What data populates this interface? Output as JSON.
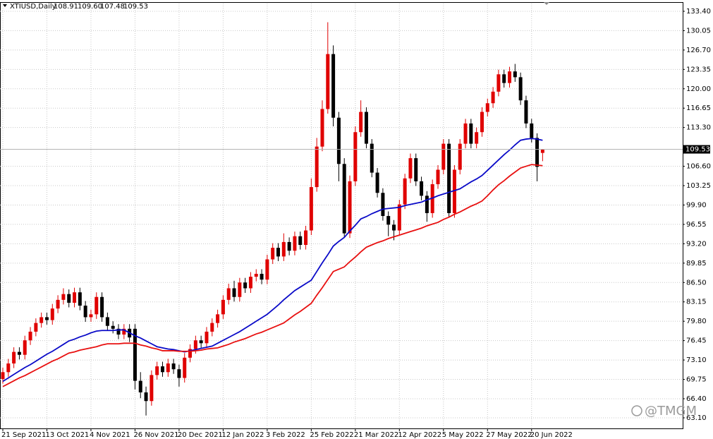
{
  "chart_data": {
    "type": "candlestick",
    "title": "XTIUSD,Daily",
    "header_values": [
      "108.91",
      "109.60",
      "107.48",
      "109.53"
    ],
    "watermark": "@TMGM",
    "categories": [
      "21 Sep 2021",
      null,
      null,
      null,
      null,
      null,
      null,
      null,
      "13 Oct 2021",
      null,
      null,
      null,
      null,
      null,
      null,
      null,
      "4 Nov 2021",
      null,
      null,
      null,
      null,
      null,
      null,
      null,
      "26 Nov 2021",
      null,
      null,
      null,
      null,
      null,
      null,
      null,
      "20 Dec 2021",
      null,
      null,
      null,
      null,
      null,
      null,
      null,
      "12 Jan 2022",
      null,
      null,
      null,
      null,
      null,
      null,
      null,
      "3 Feb 2022",
      null,
      null,
      null,
      null,
      null,
      null,
      null,
      "25 Feb 2022",
      null,
      null,
      null,
      null,
      null,
      null,
      null,
      "21 Mar 2022",
      null,
      null,
      null,
      null,
      null,
      null,
      null,
      "12 Apr 2022",
      null,
      null,
      null,
      null,
      null,
      null,
      null,
      "5 May 2022",
      null,
      null,
      null,
      null,
      null,
      null,
      null,
      "27 May 2022",
      null,
      null,
      null,
      null,
      null,
      null,
      null,
      "20 Jun 2022",
      null,
      null
    ],
    "open": [
      69.8,
      71.0,
      72.5,
      74.5,
      74.0,
      76.5,
      78.0,
      79.5,
      80.5,
      80.0,
      82.0,
      83.5,
      84.5,
      83.0,
      84.8,
      82.5,
      80.5,
      81.0,
      84.0,
      80.5,
      79.0,
      78.5,
      77.5,
      78.5,
      78.5,
      69.5,
      67.5,
      66.0,
      70.5,
      72.0,
      71.0,
      72.5,
      71.5,
      70.0,
      73.5,
      75.0,
      76.5,
      76.0,
      78.0,
      79.5,
      81.0,
      83.5,
      85.5,
      84.0,
      86.5,
      85.5,
      87.5,
      88.0,
      87.0,
      90.5,
      92.5,
      91.0,
      93.5,
      92.0,
      94.5,
      93.0,
      95.5,
      103.0,
      110.0,
      116.5,
      126.0,
      115.0,
      107.0,
      95.0,
      104.0,
      112.5,
      116.0,
      110.5,
      105.5,
      102.0,
      98.0,
      96.5,
      95.5,
      100.0,
      104.5,
      108.0,
      104.0,
      101.5,
      98.5,
      103.5,
      106.0,
      110.5,
      98.5,
      106.0,
      110.5,
      114.0,
      110.5,
      112.5,
      116.0,
      117.5,
      119.5,
      122.5,
      121.0,
      123.0,
      122.0,
      118.0,
      114.0,
      111.5,
      108.91
    ],
    "high": [
      71.8,
      73.3,
      75.3,
      75.3,
      77.3,
      78.8,
      80.3,
      81.3,
      81.3,
      82.8,
      84.3,
      85.5,
      85.3,
      85.6,
      85.6,
      83.3,
      81.8,
      84.8,
      84.8,
      81.3,
      79.8,
      79.3,
      79.3,
      79.3,
      79.3,
      71.0,
      68.5,
      71.3,
      72.8,
      72.8,
      73.3,
      73.3,
      72.3,
      74.3,
      75.8,
      77.3,
      77.3,
      78.8,
      80.3,
      81.8,
      84.3,
      86.3,
      86.8,
      87.3,
      87.3,
      88.3,
      88.8,
      88.8,
      91.3,
      93.3,
      93.3,
      95.0,
      94.3,
      95.3,
      95.3,
      96.3,
      104.5,
      111.5,
      118.0,
      131.5,
      127.5,
      116.0,
      108.0,
      105.0,
      113.5,
      118.0,
      116.8,
      111.3,
      106.3,
      102.8,
      98.8,
      97.3,
      100.8,
      105.3,
      108.8,
      108.8,
      104.8,
      102.3,
      104.3,
      106.8,
      111.3,
      111.3,
      106.8,
      111.3,
      114.8,
      114.8,
      113.3,
      116.8,
      118.3,
      120.3,
      123.3,
      123.3,
      123.8,
      124.3,
      122.8,
      118.8,
      114.8,
      112.3,
      109.6
    ],
    "low": [
      69.0,
      70.2,
      71.7,
      73.2,
      73.2,
      75.7,
      77.2,
      78.7,
      79.2,
      79.2,
      81.2,
      82.7,
      82.2,
      82.2,
      81.7,
      79.7,
      79.7,
      80.2,
      79.7,
      78.2,
      77.7,
      76.7,
      76.7,
      76.2,
      68.0,
      66.5,
      63.5,
      65.2,
      69.7,
      70.2,
      70.2,
      70.7,
      68.5,
      69.2,
      72.7,
      74.2,
      75.2,
      75.2,
      77.2,
      78.7,
      80.2,
      82.7,
      83.2,
      83.2,
      84.7,
      84.7,
      86.7,
      86.2,
      86.2,
      89.7,
      90.2,
      90.2,
      91.2,
      91.2,
      92.2,
      92.2,
      94.7,
      102.2,
      109.2,
      115.7,
      113.5,
      104.0,
      94.3,
      94.2,
      103.2,
      111.7,
      109.7,
      104.7,
      101.2,
      97.2,
      94.5,
      93.8,
      94.7,
      99.2,
      103.7,
      103.2,
      100.7,
      97.0,
      97.7,
      102.7,
      105.2,
      97.7,
      97.7,
      105.2,
      109.7,
      109.7,
      109.7,
      111.7,
      115.2,
      116.7,
      118.7,
      120.2,
      120.2,
      121.2,
      117.2,
      113.2,
      110.7,
      104.0,
      107.48
    ],
    "close": [
      71.0,
      72.5,
      74.5,
      74.0,
      76.5,
      78.0,
      79.5,
      80.5,
      80.0,
      82.0,
      83.5,
      84.5,
      83.0,
      84.8,
      82.5,
      80.5,
      81.0,
      84.0,
      80.5,
      79.0,
      78.5,
      77.5,
      78.5,
      77.0,
      69.5,
      67.5,
      66.0,
      70.5,
      72.0,
      71.0,
      72.5,
      71.5,
      70.0,
      73.5,
      75.0,
      76.5,
      76.0,
      78.0,
      79.5,
      81.0,
      83.5,
      85.5,
      84.0,
      86.5,
      85.5,
      87.5,
      88.0,
      87.0,
      90.5,
      92.5,
      91.0,
      93.5,
      92.0,
      94.5,
      93.0,
      95.5,
      103.0,
      110.0,
      116.5,
      126.0,
      115.0,
      107.0,
      95.0,
      104.0,
      112.5,
      116.0,
      110.5,
      105.5,
      102.0,
      98.0,
      96.5,
      95.5,
      100.0,
      104.5,
      108.0,
      104.0,
      101.5,
      98.5,
      103.5,
      106.0,
      110.5,
      98.5,
      106.0,
      110.5,
      114.0,
      110.5,
      112.5,
      116.0,
      117.5,
      119.5,
      122.5,
      121.0,
      123.0,
      122.0,
      118.0,
      114.0,
      111.5,
      106.5,
      109.53
    ],
    "candle_colors": {
      "up": "#e00000",
      "down": "#000000"
    },
    "moving_averages": [
      {
        "color": "#0a0ac8",
        "values": [
          69.4,
          70.0,
          70.6,
          71.2,
          71.8,
          72.3,
          72.9,
          73.5,
          74.1,
          74.6,
          75.2,
          75.8,
          76.4,
          76.7,
          77.1,
          77.4,
          77.8,
          78.1,
          78.2,
          78.2,
          78.2,
          78.3,
          78.3,
          77.8,
          77.3,
          76.9,
          76.4,
          75.9,
          75.4,
          75.2,
          75.0,
          74.9,
          74.7,
          74.5,
          74.7,
          74.9,
          75.1,
          75.3,
          75.5,
          76.0,
          76.5,
          77.0,
          77.5,
          78.0,
          78.6,
          79.2,
          79.8,
          80.4,
          81.0,
          81.8,
          82.6,
          83.5,
          84.3,
          85.1,
          85.7,
          86.3,
          86.9,
          88.4,
          89.9,
          91.3,
          92.8,
          93.6,
          94.3,
          95.4,
          96.4,
          97.5,
          97.9,
          98.4,
          98.8,
          99.2,
          99.3,
          99.4,
          99.5,
          99.8,
          100.0,
          100.2,
          100.4,
          100.8,
          101.1,
          101.5,
          101.8,
          102.1,
          102.4,
          102.7,
          103.3,
          103.9,
          104.4,
          105.0,
          105.9,
          106.8,
          107.7,
          108.6,
          109.4,
          110.3,
          111.1,
          111.3,
          111.4,
          111.3,
          111.1
        ]
      },
      {
        "color": "#e81010",
        "values": [
          68.5,
          69.0,
          69.5,
          70.0,
          70.4,
          70.9,
          71.4,
          71.9,
          72.4,
          72.9,
          73.3,
          73.8,
          74.3,
          74.5,
          74.8,
          75.0,
          75.2,
          75.4,
          75.7,
          75.9,
          75.9,
          75.9,
          76.0,
          76.0,
          76.0,
          75.7,
          75.5,
          75.2,
          75.0,
          74.7,
          74.7,
          74.7,
          74.6,
          74.6,
          74.6,
          74.7,
          74.8,
          75.0,
          75.1,
          75.2,
          75.5,
          75.8,
          76.2,
          76.5,
          76.8,
          77.2,
          77.6,
          77.9,
          78.3,
          78.7,
          79.1,
          79.5,
          80.2,
          80.9,
          81.5,
          82.2,
          82.9,
          84.3,
          85.6,
          87.0,
          88.4,
          88.8,
          89.2,
          90.1,
          90.9,
          91.8,
          92.6,
          93.0,
          93.4,
          93.7,
          94.1,
          94.4,
          94.7,
          95.0,
          95.3,
          95.6,
          95.9,
          96.3,
          96.6,
          96.9,
          97.4,
          97.8,
          98.3,
          98.7,
          99.2,
          99.7,
          100.1,
          100.6,
          101.5,
          102.5,
          103.4,
          104.1,
          104.9,
          105.6,
          106.3,
          106.6,
          106.9,
          106.8,
          106.7
        ]
      }
    ],
    "last_price": 109.53,
    "ylim": [
      61.27,
      134.74
    ],
    "yticks": [
      {
        "value": 133.4,
        "label": "133.40"
      },
      130.05,
      {
        "value": 126.7,
        "label": "126.70"
      },
      123.35,
      {
        "value": 120.0,
        "label": "120.00"
      },
      116.65,
      {
        "value": 113.3,
        "label": "113.30"
      },
      {
        "value": 106.6,
        "label": "106.60"
      },
      103.25,
      {
        "value": 99.9,
        "label": "99.90"
      },
      96.55,
      {
        "value": 93.2,
        "label": "93.20"
      },
      89.85,
      {
        "value": 86.5,
        "label": "86.50"
      },
      83.15,
      {
        "value": 79.8,
        "label": "79.80"
      },
      76.45,
      {
        "value": 73.1,
        "label": "73.10"
      },
      69.75,
      {
        "value": 66.4,
        "label": "66.40"
      },
      {
        "value": 63.1,
        "label": "63.10"
      }
    ],
    "grid": true
  }
}
